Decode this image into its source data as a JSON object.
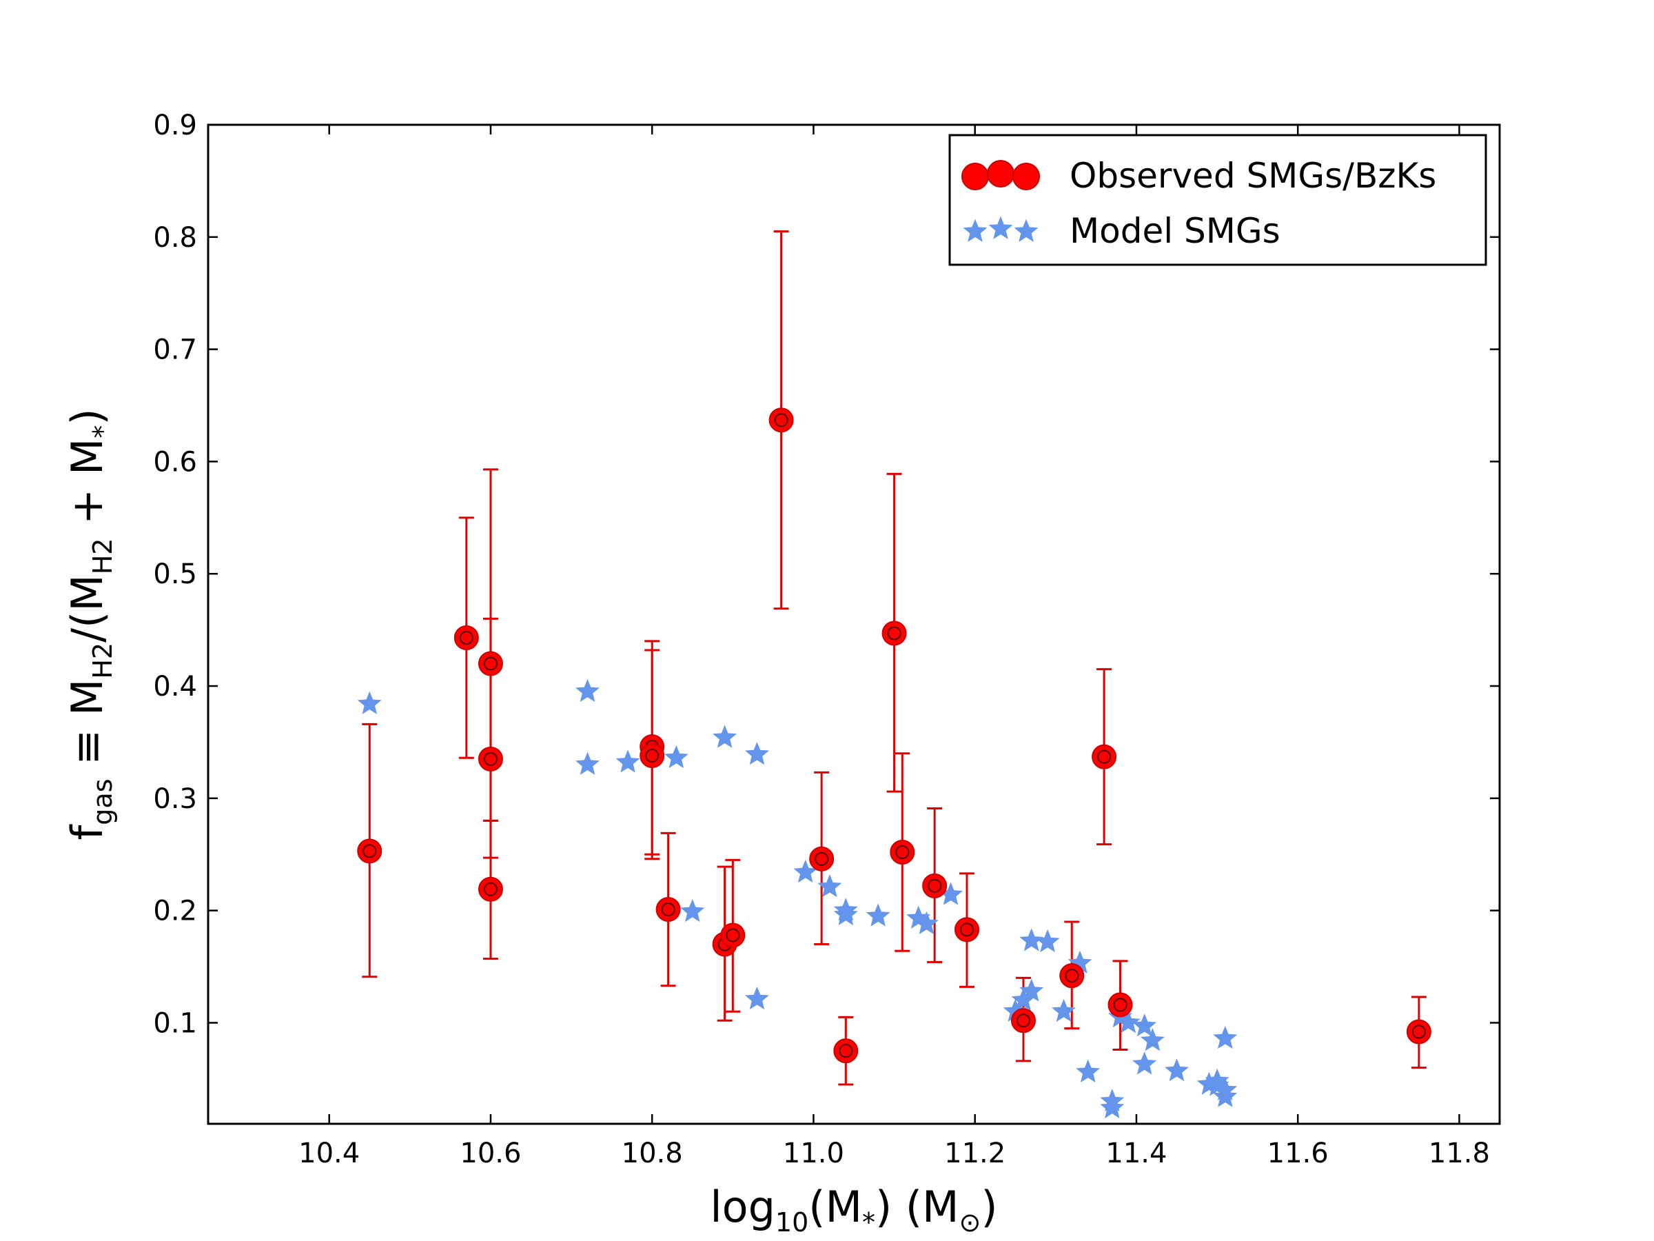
{
  "chart_data": {
    "type": "scatter",
    "title": "",
    "xlabel": {
      "base": "log",
      "base_sub": "10",
      "mid": "(M",
      "mid_sub": "*",
      "tail": ") (M",
      "tail_sub": "⊙",
      "end": ")"
    },
    "ylabel": {
      "f": "f",
      "f_sub": "gas",
      "eq": " ≡ M",
      "h2a": "H2",
      "slash": "/(M",
      "h2b": "H2",
      "plus": " + M",
      "star": "*",
      "close": ")"
    },
    "xlim": [
      10.25,
      11.85
    ],
    "ylim": [
      0.01,
      0.9
    ],
    "x_ticks": [
      10.4,
      10.6,
      10.8,
      11.0,
      11.2,
      11.4,
      11.6,
      11.8
    ],
    "x_tick_labels": [
      "10.4",
      "10.6",
      "10.8",
      "11.0",
      "11.2",
      "11.4",
      "11.6",
      "11.8"
    ],
    "y_ticks": [
      0.1,
      0.2,
      0.3,
      0.4,
      0.5,
      0.6,
      0.7,
      0.8,
      0.9
    ],
    "y_tick_labels": [
      "0.1",
      "0.2",
      "0.3",
      "0.4",
      "0.5",
      "0.6",
      "0.7",
      "0.8",
      "0.9"
    ],
    "legend": {
      "location": "upper right",
      "entries": [
        "Observed SMGs/BzKs",
        "Model SMGs"
      ]
    },
    "series": [
      {
        "name": "Observed SMGs/BzKs",
        "marker": "circle",
        "color": "#ff0000",
        "edge_color": "#cc0000",
        "points": [
          {
            "x": 10.45,
            "y": 0.253,
            "ylo": 0.141,
            "yhi": 0.366
          },
          {
            "x": 10.57,
            "y": 0.443,
            "ylo": 0.336,
            "yhi": 0.55
          },
          {
            "x": 10.6,
            "y": 0.42,
            "ylo": 0.28,
            "yhi": 0.593
          },
          {
            "x": 10.6,
            "y": 0.335,
            "ylo": 0.247,
            "yhi": 0.46
          },
          {
            "x": 10.6,
            "y": 0.219,
            "ylo": 0.157,
            "yhi": 0.28
          },
          {
            "x": 10.8,
            "y": 0.346,
            "ylo": 0.25,
            "yhi": 0.44
          },
          {
            "x": 10.8,
            "y": 0.338,
            "ylo": 0.246,
            "yhi": 0.432
          },
          {
            "x": 10.82,
            "y": 0.201,
            "ylo": 0.133,
            "yhi": 0.269
          },
          {
            "x": 10.89,
            "y": 0.17,
            "ylo": 0.102,
            "yhi": 0.239
          },
          {
            "x": 10.9,
            "y": 0.178,
            "ylo": 0.11,
            "yhi": 0.245
          },
          {
            "x": 10.96,
            "y": 0.637,
            "ylo": 0.469,
            "yhi": 0.805
          },
          {
            "x": 11.01,
            "y": 0.246,
            "ylo": 0.17,
            "yhi": 0.323
          },
          {
            "x": 11.04,
            "y": 0.075,
            "ylo": 0.045,
            "yhi": 0.105
          },
          {
            "x": 11.1,
            "y": 0.447,
            "ylo": 0.306,
            "yhi": 0.589
          },
          {
            "x": 11.11,
            "y": 0.252,
            "ylo": 0.164,
            "yhi": 0.34
          },
          {
            "x": 11.15,
            "y": 0.222,
            "ylo": 0.154,
            "yhi": 0.291
          },
          {
            "x": 11.19,
            "y": 0.183,
            "ylo": 0.132,
            "yhi": 0.233
          },
          {
            "x": 11.26,
            "y": 0.102,
            "ylo": 0.066,
            "yhi": 0.14
          },
          {
            "x": 11.32,
            "y": 0.142,
            "ylo": 0.095,
            "yhi": 0.19
          },
          {
            "x": 11.36,
            "y": 0.337,
            "ylo": 0.259,
            "yhi": 0.415
          },
          {
            "x": 11.38,
            "y": 0.116,
            "ylo": 0.076,
            "yhi": 0.155
          },
          {
            "x": 11.75,
            "y": 0.092,
            "ylo": 0.06,
            "yhi": 0.123
          }
        ]
      },
      {
        "name": "Model SMGs",
        "marker": "star",
        "color": "#6495ed",
        "points": [
          {
            "x": 10.45,
            "y": 0.384
          },
          {
            "x": 10.72,
            "y": 0.395
          },
          {
            "x": 10.72,
            "y": 0.33
          },
          {
            "x": 10.77,
            "y": 0.332
          },
          {
            "x": 10.83,
            "y": 0.336
          },
          {
            "x": 10.89,
            "y": 0.354
          },
          {
            "x": 10.93,
            "y": 0.339
          },
          {
            "x": 10.85,
            "y": 0.199
          },
          {
            "x": 10.93,
            "y": 0.121
          },
          {
            "x": 10.99,
            "y": 0.234
          },
          {
            "x": 11.02,
            "y": 0.221
          },
          {
            "x": 11.04,
            "y": 0.2
          },
          {
            "x": 11.04,
            "y": 0.196
          },
          {
            "x": 11.08,
            "y": 0.195
          },
          {
            "x": 11.13,
            "y": 0.193
          },
          {
            "x": 11.14,
            "y": 0.188
          },
          {
            "x": 11.17,
            "y": 0.214
          },
          {
            "x": 11.25,
            "y": 0.11
          },
          {
            "x": 11.26,
            "y": 0.12
          },
          {
            "x": 11.27,
            "y": 0.128
          },
          {
            "x": 11.27,
            "y": 0.173
          },
          {
            "x": 11.29,
            "y": 0.172
          },
          {
            "x": 11.31,
            "y": 0.11
          },
          {
            "x": 11.33,
            "y": 0.153
          },
          {
            "x": 11.34,
            "y": 0.056
          },
          {
            "x": 11.37,
            "y": 0.03
          },
          {
            "x": 11.37,
            "y": 0.024
          },
          {
            "x": 11.38,
            "y": 0.105
          },
          {
            "x": 11.39,
            "y": 0.1
          },
          {
            "x": 11.41,
            "y": 0.097
          },
          {
            "x": 11.42,
            "y": 0.084
          },
          {
            "x": 11.41,
            "y": 0.063
          },
          {
            "x": 11.45,
            "y": 0.057
          },
          {
            "x": 11.49,
            "y": 0.045
          },
          {
            "x": 11.5,
            "y": 0.044
          },
          {
            "x": 11.5,
            "y": 0.048
          },
          {
            "x": 11.51,
            "y": 0.04
          },
          {
            "x": 11.51,
            "y": 0.034
          },
          {
            "x": 11.51,
            "y": 0.086
          }
        ]
      }
    ]
  }
}
